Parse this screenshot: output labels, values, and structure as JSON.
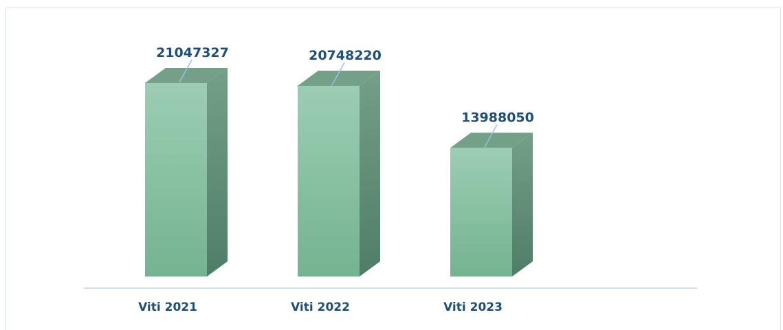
{
  "chart_data": {
    "type": "bar",
    "categories": [
      "Viti 2021",
      "Viti 2022",
      "Viti 2023"
    ],
    "values": [
      21047327,
      20748220,
      13988050
    ],
    "data_labels": [
      "21047327",
      "20748220",
      "13988050"
    ],
    "ylim": [
      0,
      25000000
    ],
    "grid": false,
    "legend": "none",
    "colors": {
      "front_top": "#9ccdb3",
      "front_bottom": "#74b391",
      "side": "#4f7d66",
      "top": "#749f89",
      "label": "#1f4e79",
      "leader": "#9cc3e0",
      "axis": "#bfd6ea"
    }
  }
}
